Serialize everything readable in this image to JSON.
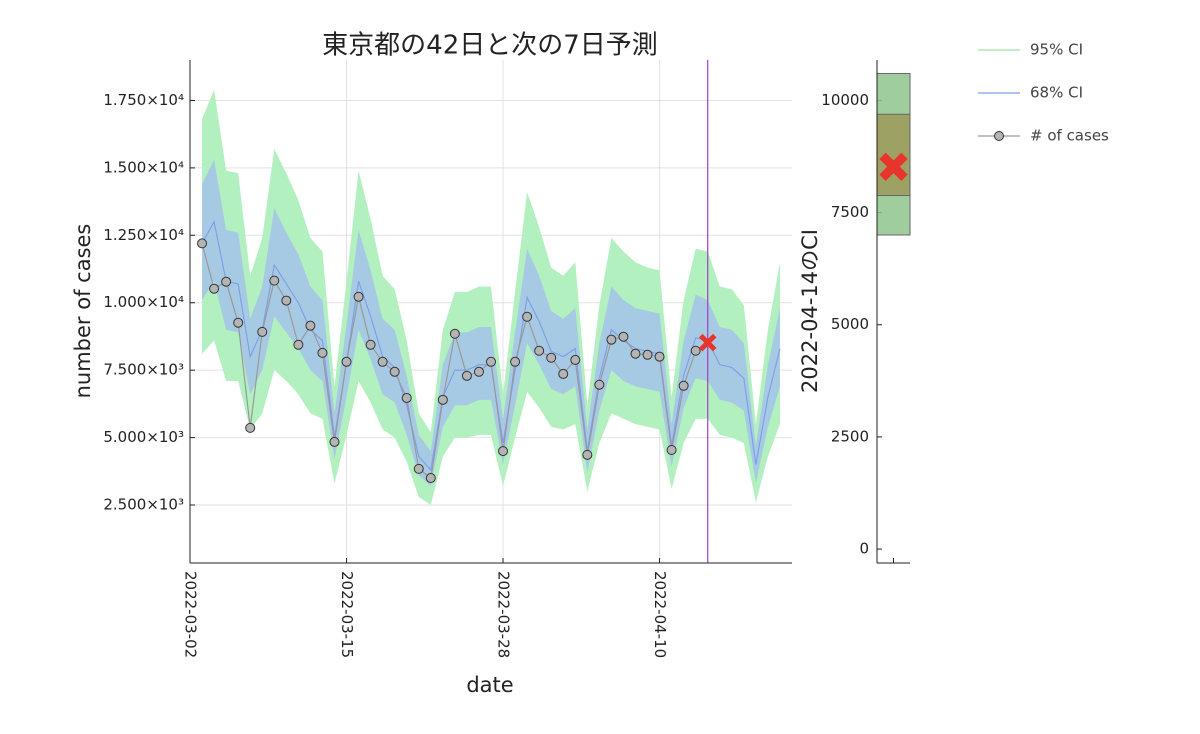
{
  "chart_data": [
    {
      "type": "line",
      "title": "東京都の42日と次の7日予測",
      "xlabel": "date",
      "ylabel": "number of cases",
      "x": [
        "2022-03-03",
        "2022-03-04",
        "2022-03-05",
        "2022-03-06",
        "2022-03-07",
        "2022-03-08",
        "2022-03-09",
        "2022-03-10",
        "2022-03-11",
        "2022-03-12",
        "2022-03-13",
        "2022-03-14",
        "2022-03-15",
        "2022-03-16",
        "2022-03-17",
        "2022-03-18",
        "2022-03-19",
        "2022-03-20",
        "2022-03-21",
        "2022-03-22",
        "2022-03-23",
        "2022-03-24",
        "2022-03-25",
        "2022-03-26",
        "2022-03-27",
        "2022-03-28",
        "2022-03-29",
        "2022-03-30",
        "2022-03-31",
        "2022-04-01",
        "2022-04-02",
        "2022-04-03",
        "2022-04-04",
        "2022-04-05",
        "2022-04-06",
        "2022-04-07",
        "2022-04-08",
        "2022-04-09",
        "2022-04-10",
        "2022-04-11",
        "2022-04-12",
        "2022-04-13",
        "2022-04-14",
        "2022-04-15",
        "2022-04-16",
        "2022-04-17",
        "2022-04-18",
        "2022-04-19",
        "2022-04-20"
      ],
      "xlim": [
        "2022-03-02",
        "2022-04-21"
      ],
      "xticks": [
        "2022-03-02",
        "2022-03-15",
        "2022-03-28",
        "2022-04-10"
      ],
      "ylim": [
        350,
        19000
      ],
      "yticks": [
        {
          "value": 2500,
          "label": "2.500×10³"
        },
        {
          "value": 5000,
          "label": "5.000×10³"
        },
        {
          "value": 7500,
          "label": "7.500×10³"
        },
        {
          "value": 10000,
          "label": "1.000×10⁴"
        },
        {
          "value": 12500,
          "label": "1.250×10⁴"
        },
        {
          "value": 15000,
          "label": "1.500×10⁴"
        },
        {
          "value": 17500,
          "label": "1.750×10⁴"
        }
      ],
      "grid": true,
      "vline": "2022-04-14",
      "vline_color": "#a040c0",
      "forecast": {
        "x": "2022-04-14",
        "value": 8520,
        "color": "#e8352c"
      },
      "series": [
        {
          "name": "95% CI",
          "color": "#b3f0c0",
          "line_color": "#9fe3a5",
          "upper": [
            16800,
            17900,
            14900,
            14800,
            11000,
            12400,
            15700,
            14800,
            13800,
            12400,
            11900,
            6900,
            10800,
            14900,
            13100,
            11000,
            10500,
            8600,
            5900,
            5200,
            9000,
            10400,
            10400,
            10600,
            10600,
            6600,
            10400,
            14100,
            12800,
            11300,
            11000,
            11500,
            6200,
            9900,
            12400,
            11900,
            11500,
            11300,
            11200,
            6500,
            10100,
            12000,
            11900,
            10600,
            10500,
            9900,
            5500,
            9000,
            11500
          ],
          "lower": [
            8100,
            8600,
            7100,
            7100,
            5300,
            5900,
            7500,
            7100,
            6600,
            5900,
            5700,
            3300,
            5100,
            7100,
            6300,
            5300,
            5000,
            4100,
            2800,
            2500,
            4300,
            5000,
            5000,
            5100,
            5100,
            3200,
            5000,
            6700,
            6100,
            5400,
            5300,
            5500,
            3000,
            4800,
            5900,
            5700,
            5500,
            5400,
            5300,
            3100,
            4800,
            5700,
            5700,
            5100,
            5000,
            4800,
            2600,
            4300,
            5500
          ]
        },
        {
          "name": "68% CI",
          "color": "#a5c3ea",
          "line_color": "#7f9fe6",
          "values": [
            12200,
            13000,
            10800,
            10700,
            8000,
            9000,
            11400,
            10700,
            10000,
            9000,
            8600,
            5000,
            7800,
            10800,
            9500,
            8000,
            7600,
            6200,
            4300,
            3800,
            6500,
            7500,
            7500,
            7700,
            7700,
            4800,
            7500,
            10200,
            9300,
            8200,
            8000,
            8300,
            4500,
            7200,
            9000,
            8600,
            8300,
            8200,
            8100,
            4700,
            7300,
            8700,
            8600,
            7700,
            7600,
            7200,
            4000,
            6500,
            8300
          ],
          "upper": [
            14400,
            15300,
            12700,
            12600,
            9400,
            10600,
            13500,
            12600,
            11800,
            10600,
            10100,
            5900,
            9200,
            12700,
            11200,
            9400,
            9000,
            7300,
            5100,
            4500,
            7700,
            8900,
            8900,
            9100,
            9100,
            5700,
            8900,
            12000,
            11000,
            9700,
            9400,
            9800,
            5300,
            8500,
            10600,
            10100,
            9800,
            9700,
            9600,
            5500,
            8600,
            10300,
            10100,
            9100,
            9000,
            8500,
            4700,
            7700,
            9800
          ],
          "lower": [
            10100,
            10800,
            9000,
            8900,
            6600,
            7500,
            9500,
            8900,
            8300,
            7500,
            7100,
            4200,
            6500,
            9000,
            7900,
            6600,
            6300,
            5100,
            3600,
            3200,
            5400,
            6200,
            6200,
            6400,
            6400,
            4000,
            6200,
            8500,
            7700,
            6800,
            6600,
            6900,
            3700,
            6000,
            7500,
            7100,
            6900,
            6800,
            6700,
            3900,
            6100,
            7200,
            7100,
            6400,
            6300,
            6000,
            3300,
            5400,
            6900
          ]
        },
        {
          "name": "# of cases",
          "color": "#b4b4b4",
          "line_color": "#999999",
          "values": [
            12200,
            10520,
            10780,
            9260,
            5360,
            8920,
            10820,
            10080,
            8440,
            9150,
            8140,
            4840,
            7810,
            10220,
            8440,
            7810,
            7440,
            6470,
            3840,
            3500,
            6400,
            8850,
            7290,
            7440,
            7810,
            4500,
            7810,
            9480,
            8220,
            7960,
            7360,
            7880,
            4360,
            6960,
            8630,
            8740,
            8110,
            8070,
            8000,
            4540,
            6920,
            8220,
            null,
            null,
            null,
            null,
            null,
            null,
            null
          ]
        }
      ]
    },
    {
      "type": "interval",
      "ylabel": "2022-04-14のCI",
      "ylim": [
        -310,
        10900
      ],
      "yticks": [
        0,
        2500,
        5000,
        7500,
        10000
      ],
      "ci95": [
        7000,
        10600
      ],
      "ci95_color": "#8fc48c",
      "ci68": [
        7880,
        9690
      ],
      "ci68_color": "#9c9a5a"
    }
  ]
}
